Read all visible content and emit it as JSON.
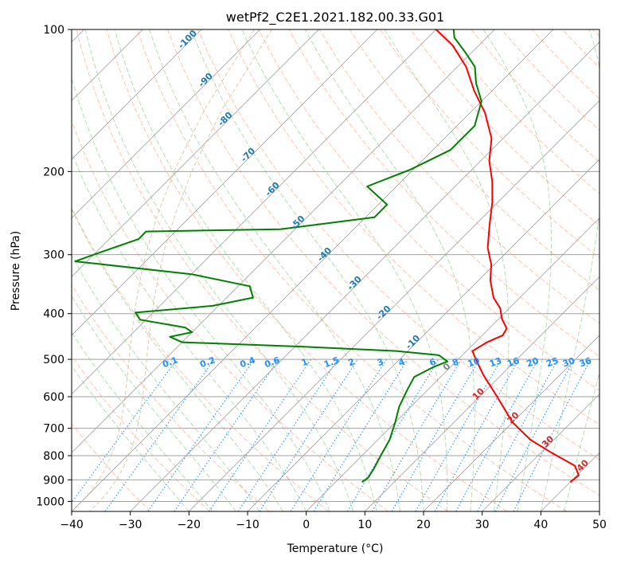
{
  "chart_data": {
    "type": "line",
    "title": "wetPf2_C2E1.2021.182.00.33.G01",
    "xlabel": "Temperature (°C)",
    "ylabel": "Pressure (hPa)",
    "xlim": [
      -40,
      50
    ],
    "ylim": [
      1050,
      100
    ],
    "y_scale": "log",
    "skew": true,
    "grid": true,
    "x_ticks": [
      "−40",
      "−30",
      "−20",
      "−10",
      "0",
      "10",
      "20",
      "30",
      "40",
      "50"
    ],
    "y_ticks": [
      "100",
      "200",
      "300",
      "400",
      "500",
      "600",
      "700",
      "800",
      "900",
      "1000"
    ],
    "colors": {
      "temperature": "#ff0000",
      "dewpoint": "#008000",
      "isotherm_grid": "#a0a0a0",
      "dry_adiabat": "#ff7f50",
      "moist_adiabat": "#2ca02c",
      "mixing_ratio": "#1e90ff",
      "isotherm_label_blue": "#1f77b4",
      "isotherm_label_red": "#d62728",
      "zero_label": "#808080",
      "surface_curve": "#d2b48c"
    },
    "series": [
      {
        "name": "",
        "role": "temperature",
        "points": [
          [
            40.0,
            910
          ],
          [
            40.3,
            880
          ],
          [
            38.0,
            840
          ],
          [
            32.0,
            790
          ],
          [
            26.0,
            740
          ],
          [
            20.0,
            680
          ],
          [
            13.0,
            600
          ],
          [
            7.0,
            540
          ],
          [
            3.0,
            500
          ],
          [
            1.0,
            480
          ],
          [
            1.5,
            470
          ],
          [
            2.0,
            460
          ],
          [
            3.5,
            445
          ],
          [
            3.0,
            430
          ],
          [
            0.5,
            410
          ],
          [
            -1.5,
            390
          ],
          [
            -4.5,
            370
          ],
          [
            -8.0,
            340
          ],
          [
            -10.5,
            315
          ],
          [
            -14.0,
            290
          ],
          [
            -17.5,
            260
          ],
          [
            -21.0,
            232
          ],
          [
            -24.5,
            210
          ],
          [
            -28.5,
            190
          ],
          [
            -32.0,
            170
          ],
          [
            -37.5,
            150
          ],
          [
            -43.0,
            135
          ],
          [
            -48.5,
            120
          ],
          [
            -54.5,
            108
          ],
          [
            -60.0,
            100
          ]
        ]
      },
      {
        "name": "",
        "role": "dewpoint",
        "points": [
          [
            4.5,
            910
          ],
          [
            4.8,
            890
          ],
          [
            4.2,
            850
          ],
          [
            3.2,
            800
          ],
          [
            2.0,
            740
          ],
          [
            0.0,
            680
          ],
          [
            -2.0,
            630
          ],
          [
            -3.5,
            580
          ],
          [
            -4.5,
            545
          ],
          [
            -3.0,
            520
          ],
          [
            -1.5,
            505
          ],
          [
            -4.0,
            490
          ],
          [
            -12.0,
            480
          ],
          [
            -28.5,
            470
          ],
          [
            -50.0,
            460
          ],
          [
            -53.0,
            448
          ],
          [
            -50.0,
            438
          ],
          [
            -52.0,
            428
          ],
          [
            -61.0,
            412
          ],
          [
            -63.0,
            398
          ],
          [
            -51.0,
            385
          ],
          [
            -45.5,
            370
          ],
          [
            -48.0,
            350
          ],
          [
            -60.0,
            330
          ],
          [
            -82.0,
            310
          ],
          [
            -80.0,
            300
          ],
          [
            -75.0,
            278
          ],
          [
            -75.0,
            268
          ],
          [
            -52.5,
            265
          ],
          [
            -38.5,
            250
          ],
          [
            -38.5,
            235
          ],
          [
            -45.0,
            215
          ],
          [
            -40.5,
            198
          ],
          [
            -37.0,
            180
          ],
          [
            -37.0,
            160
          ],
          [
            -40.0,
            142
          ],
          [
            -44.0,
            130
          ],
          [
            -47.0,
            120
          ],
          [
            -51.0,
            112
          ],
          [
            -55.5,
            104
          ],
          [
            -57.0,
            100
          ]
        ]
      }
    ],
    "isotherm_labels_blue": [
      {
        "t": -100,
        "text": "-100"
      },
      {
        "t": -90,
        "text": "-90"
      },
      {
        "t": -80,
        "text": "-80"
      },
      {
        "t": -70,
        "text": "-70"
      },
      {
        "t": -60,
        "text": "-60"
      },
      {
        "t": -50,
        "text": "-50"
      },
      {
        "t": -40,
        "text": "-40"
      },
      {
        "t": -30,
        "text": "-30"
      },
      {
        "t": -20,
        "text": "-20"
      },
      {
        "t": -10,
        "text": "-10"
      }
    ],
    "isotherm_label_zero": {
      "t": 0,
      "text": "0"
    },
    "isotherm_labels_red": [
      {
        "t": 10,
        "text": "10"
      },
      {
        "t": 20,
        "text": "20"
      },
      {
        "t": 30,
        "text": "30"
      },
      {
        "t": 40,
        "text": "40"
      }
    ],
    "mixing_ratio_labels": [
      "0.1",
      "0.2",
      "0.4",
      "0.6",
      "1",
      "1.5",
      "2",
      "3",
      "4",
      "6",
      "8",
      "10",
      "13",
      "16",
      "20",
      "25",
      "30",
      "36"
    ]
  }
}
